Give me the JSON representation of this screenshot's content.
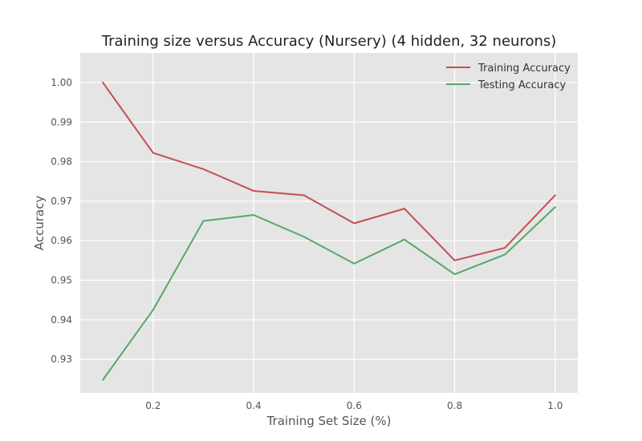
{
  "chart_data": {
    "type": "line",
    "title": "Training size versus Accuracy (Nursery) (4 hidden, 32 neurons)",
    "xlabel": "Training Set Size (%)",
    "ylabel": "Accuracy",
    "xlim": [
      0.055,
      1.045
    ],
    "ylim": [
      0.9215,
      1.0075
    ],
    "xticks": [
      0.2,
      0.4,
      0.6,
      0.8,
      1.0
    ],
    "xtick_labels": [
      "0.2",
      "0.4",
      "0.6",
      "0.8",
      "1.0"
    ],
    "yticks": [
      0.93,
      0.94,
      0.95,
      0.96,
      0.97,
      0.98,
      0.99,
      1.0
    ],
    "ytick_labels": [
      "0.93",
      "0.94",
      "0.95",
      "0.96",
      "0.97",
      "0.98",
      "0.99",
      "1.00"
    ],
    "grid": true,
    "legend_position": "top-right",
    "x": [
      0.1,
      0.2,
      0.3,
      0.4,
      0.5,
      0.6,
      0.7,
      0.8,
      0.9,
      1.0
    ],
    "series": [
      {
        "name": "Training Accuracy",
        "color": "#c44e52",
        "values": [
          1.0,
          0.9822,
          0.9781,
          0.9726,
          0.9715,
          0.9644,
          0.9681,
          0.955,
          0.9582,
          0.9715
        ]
      },
      {
        "name": "Testing Accuracy",
        "color": "#55a868",
        "values": [
          0.9248,
          0.9425,
          0.965,
          0.9665,
          0.961,
          0.9542,
          0.9603,
          0.9515,
          0.9565,
          0.9685
        ]
      }
    ]
  }
}
